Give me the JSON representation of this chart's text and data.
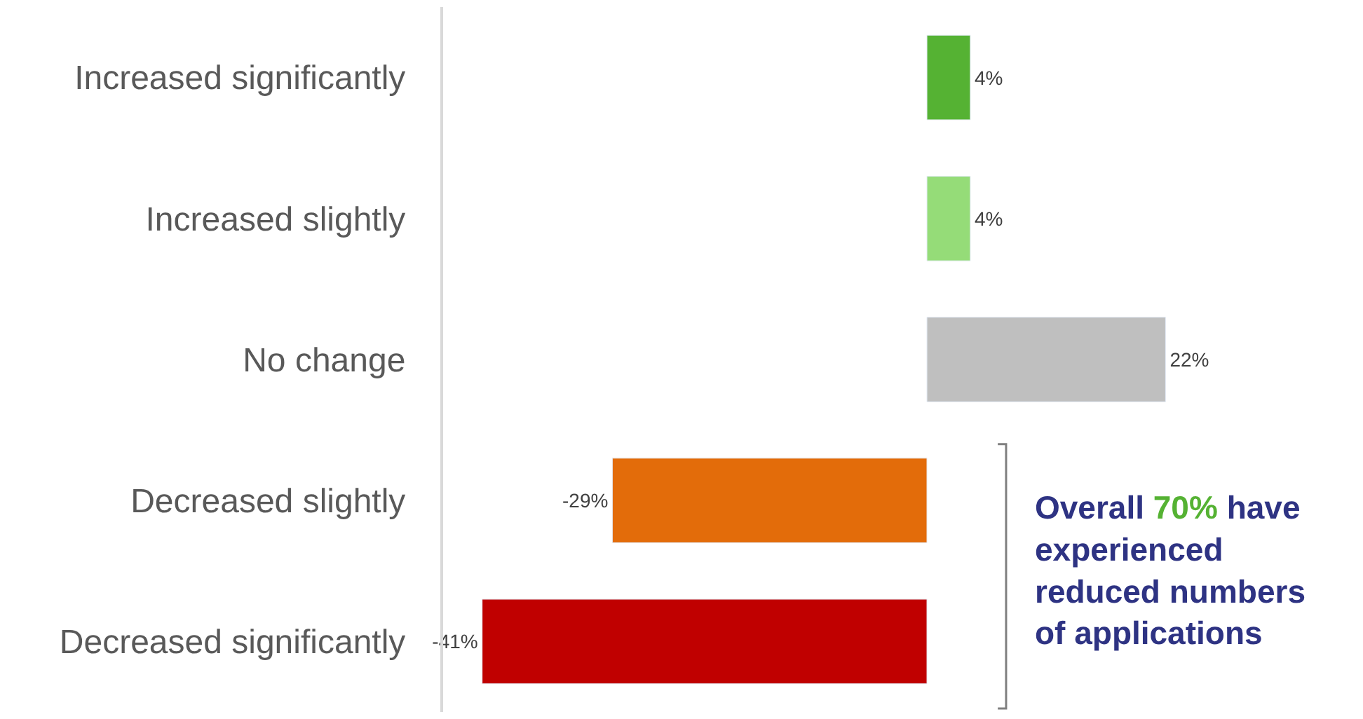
{
  "chart_data": {
    "type": "bar",
    "orientation": "horizontal",
    "categories": [
      "Increased significantly",
      "Increased slightly",
      "No change",
      "Decreased slightly",
      "Decreased significantly"
    ],
    "values": [
      4,
      4,
      22,
      -29,
      -41
    ],
    "colors": [
      "#55b233",
      "#95dc78",
      "#bfbfbf",
      "#e36c0a",
      "#c00000"
    ],
    "value_labels": [
      "4%",
      "4%",
      "22%",
      "-29%",
      "-41%"
    ],
    "xlim": [
      -44.6,
      40.2
    ],
    "tick_labels": "y",
    "annotations": [
      "Overall 70% have experienced reduced numbers of applications"
    ]
  }
}
